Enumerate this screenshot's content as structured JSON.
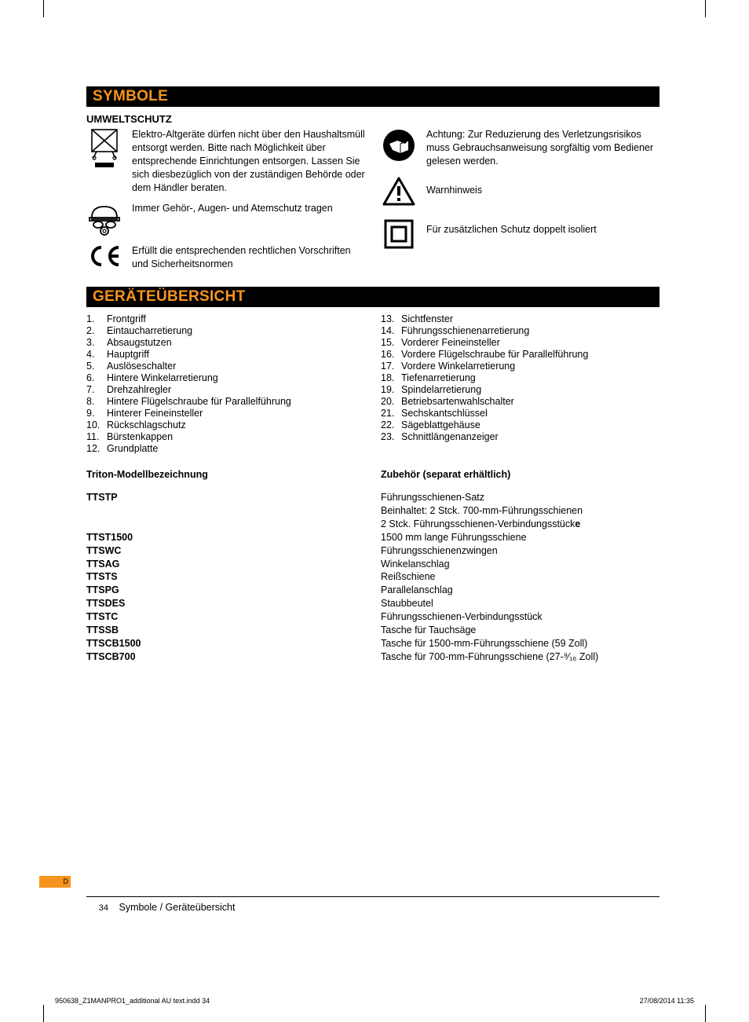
{
  "crop_marks": true,
  "colors": {
    "accent": "#f7941d",
    "bar_bg": "#000000",
    "text": "#000000"
  },
  "section1_title": "SYMBOLE",
  "subhead1": "UMWELTSCHUTZ",
  "symbols_left": [
    {
      "icon": "weee",
      "text": "Elektro-Altgeräte dürfen nicht über den Haushaltsmüll entsorgt werden. Bitte nach Möglichkeit über entsprechende Einrichtungen entsorgen. Lassen Sie sich diesbezüglich von der zuständigen Behörde oder dem Händler beraten."
    },
    {
      "icon": "ppe",
      "text": "Immer Gehör-, Augen- und Atemschutz tragen"
    },
    {
      "icon": "ce",
      "text": "Erfüllt die entsprechenden rechtlichen Vorschriften und Sicherheitsnormen"
    }
  ],
  "symbols_right": [
    {
      "icon": "manual",
      "text": "Achtung: Zur Reduzierung des  Verletzungsrisikos muss Gebrauchsanweisung sorgfältig vom Bediener gelesen werden."
    },
    {
      "icon": "warning",
      "text": "Warnhinweis"
    },
    {
      "icon": "double-insulated",
      "text": "Für zusätzlichen Schutz doppelt isoliert"
    }
  ],
  "section2_title": "GERÄTEÜBERSICHT",
  "overview_left": [
    {
      "n": "1.",
      "t": "Frontgriff"
    },
    {
      "n": "2.",
      "t": "Eintaucharretierung"
    },
    {
      "n": "3.",
      "t": "Absaugstutzen"
    },
    {
      "n": "4.",
      "t": "Hauptgriff"
    },
    {
      "n": "5.",
      "t": "Auslöseschalter"
    },
    {
      "n": "6.",
      "t": "Hintere Winkelarretierung"
    },
    {
      "n": "7.",
      "t": "Drehzahlregler"
    },
    {
      "n": "8.",
      "t": "Hintere Flügelschraube für Parallelführung"
    },
    {
      "n": "9.",
      "t": "Hinterer Feineinsteller"
    },
    {
      "n": "10.",
      "t": "Rückschlagschutz"
    },
    {
      "n": "11.",
      "t": "Bürstenkappen"
    },
    {
      "n": "12.",
      "t": "Grundplatte"
    }
  ],
  "overview_right": [
    {
      "n": "13.",
      "t": "Sichtfenster"
    },
    {
      "n": "14.",
      "t": "Führungsschienenarretierung"
    },
    {
      "n": "15.",
      "t": "Vorderer Feineinsteller"
    },
    {
      "n": "16.",
      "t": "Vordere Flügelschraube für Parallelführung"
    },
    {
      "n": "17.",
      "t": "Vordere Winkelarretierung"
    },
    {
      "n": "18.",
      "t": "Tiefenarretierung"
    },
    {
      "n": "19.",
      "t": "Spindelarretierung"
    },
    {
      "n": "20.",
      "t": "Betriebsartenwahlschalter"
    },
    {
      "n": "21.",
      "t": "Sechskantschlüssel"
    },
    {
      "n": "22.",
      "t": "Sägeblattgehäuse"
    },
    {
      "n": "23.",
      "t": "Schnittlängenanzeiger"
    }
  ],
  "model_head_left": "Triton-Modellbezeichnung",
  "model_head_right": "Zubehör (separat erhältlich)",
  "models": [
    {
      "code": "TTSTP",
      "desc_lines": [
        "Führungsschienen-Satz",
        "Beinhaltet:  2 Stck. 700-mm-Führungsschienen",
        "2 Stck. Führungsschienen-Verbindungsstücke"
      ],
      "spacer_after": true
    },
    {
      "code": "TTST1500",
      "desc_lines": [
        "1500 mm lange Führungsschiene"
      ]
    },
    {
      "code": "TTSWC",
      "desc_lines": [
        "Führungsschienenzwingen"
      ]
    },
    {
      "code": "TTSAG",
      "desc_lines": [
        "Winkelanschlag"
      ]
    },
    {
      "code": "TTSTS",
      "desc_lines": [
        "Reißschiene"
      ]
    },
    {
      "code": "TTSPG",
      "desc_lines": [
        "Parallelanschlag"
      ]
    },
    {
      "code": "TTSDES",
      "desc_lines": [
        "Staubbeutel"
      ]
    },
    {
      "code": "TTSTC",
      "desc_lines": [
        "Führungsschienen-Verbindungsstück"
      ]
    },
    {
      "code": "TTSSB",
      "desc_lines": [
        "Tasche für Tauchsäge"
      ]
    },
    {
      "code": "TTSCB1500",
      "desc_lines": [
        "Tasche für 1500-mm-Führungsschiene (59 Zoll)"
      ]
    },
    {
      "code": "TTSCB700",
      "desc_lines": [
        "Tasche für 700-mm-Führungsschiene (27-⁹⁄₁₆ Zoll)"
      ]
    }
  ],
  "tab_label": "D",
  "footer_page": "34",
  "footer_text": "Symbole / Geräteübersicht",
  "slug_file": "950638_Z1MANPRO1_additional AU text.indd   34",
  "slug_date": "27/08/2014   11:35"
}
